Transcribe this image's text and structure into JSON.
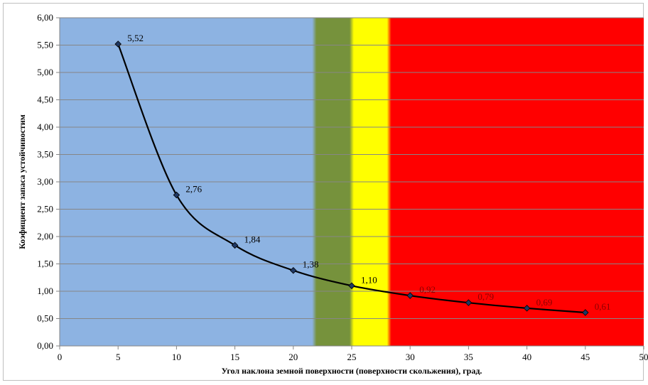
{
  "chart_data": {
    "type": "line",
    "title": "",
    "xlabel": "Угол наклона земной поверхности (поверхности скольжения), град.",
    "ylabel": "Коэфициент запаса устойчивостим",
    "xlim": [
      0,
      50
    ],
    "ylim": [
      0,
      6
    ],
    "x_ticks": [
      0,
      5,
      10,
      15,
      20,
      25,
      30,
      35,
      40,
      45,
      50
    ],
    "y_ticks": [
      "0,00",
      "0,50",
      "1,00",
      "1,50",
      "2,00",
      "2,50",
      "3,00",
      "3,50",
      "4,00",
      "4,50",
      "5,00",
      "5,50",
      "6,00"
    ],
    "grid": "horizontal",
    "series": [
      {
        "x": [
          5,
          10,
          15,
          20,
          25,
          30,
          35,
          40,
          45
        ],
        "y": [
          5.52,
          2.76,
          1.84,
          1.38,
          1.1,
          0.92,
          0.79,
          0.69,
          0.61
        ],
        "labels": [
          "5,52",
          "2,76",
          "1,84",
          "1,38",
          "1,10",
          "0,92",
          "0,79",
          "0,69",
          "0,61"
        ],
        "color": "#000000",
        "marker_color": "#1f3864"
      }
    ],
    "bands": [
      {
        "from": 0,
        "to": 21.8,
        "color": "#8db3e2"
      },
      {
        "from": 21.8,
        "to": 25,
        "color": "#76923c"
      },
      {
        "from": 25,
        "to": 28.2,
        "color": "#ffff00"
      },
      {
        "from": 28.2,
        "to": 50,
        "color": "#ff0000"
      }
    ],
    "label_colors": {
      "default": "#000000",
      "red_zone": "#8b0000"
    }
  }
}
